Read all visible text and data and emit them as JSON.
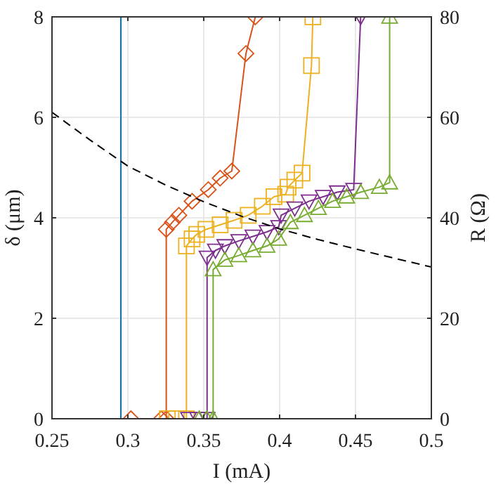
{
  "chart_data": {
    "type": "line",
    "xlabel": "I (mA)",
    "ylabel": "δ (μm)",
    "y2label": "R (Ω)",
    "xlim": [
      0.25,
      0.5
    ],
    "xticks": [
      0.25,
      0.3,
      0.35,
      0.4,
      0.45,
      0.5
    ],
    "ylim": [
      0,
      8
    ],
    "yticks": [
      0,
      2,
      4,
      6,
      8
    ],
    "y2lim": [
      0,
      80
    ],
    "y2ticks": [
      0,
      20,
      40,
      60,
      80
    ],
    "grid": true,
    "series": [
      {
        "color": "#0072bd",
        "marker": "none",
        "x": [
          0.2954,
          0.2954
        ],
        "values": [
          0,
          8
        ]
      },
      {
        "color": "#d95319",
        "marker": "diamond",
        "x": [
          0.302,
          0.322,
          0.3253,
          0.3253,
          0.3293,
          0.3336,
          0.3423,
          0.353,
          0.3608,
          0.3685,
          0.3778,
          0.384
        ],
        "values": [
          0,
          0,
          0,
          3.77,
          3.91,
          4.05,
          4.33,
          4.56,
          4.79,
          4.93,
          7.27,
          8
        ]
      },
      {
        "color": "#edb120",
        "marker": "square",
        "x": [
          0.326,
          0.332,
          0.3386,
          0.3386,
          0.3423,
          0.3454,
          0.3515,
          0.3608,
          0.37,
          0.3793,
          0.3886,
          0.3963,
          0.404,
          0.4056,
          0.41,
          0.4148,
          0.421,
          0.4219
        ],
        "values": [
          0,
          0,
          0,
          3.44,
          3.58,
          3.67,
          3.77,
          3.86,
          3.95,
          4.05,
          4.23,
          4.42,
          4.47,
          4.61,
          4.75,
          4.89,
          7.03,
          8
        ]
      },
      {
        "color": "#7e2f8e",
        "marker": "triangle-down",
        "x": [
          0.34,
          0.346,
          0.3522,
          0.3522,
          0.3577,
          0.3639,
          0.3731,
          0.3824,
          0.3917,
          0.3994,
          0.401,
          0.41,
          0.4194,
          0.4287,
          0.438,
          0.4488,
          0.4534
        ],
        "values": [
          0,
          0,
          0,
          3.21,
          3.35,
          3.44,
          3.54,
          3.63,
          3.72,
          3.82,
          4.05,
          4.19,
          4.33,
          4.42,
          4.51,
          4.56,
          8
        ]
      },
      {
        "color": "#77ac30",
        "marker": "triangle",
        "x": [
          0.347,
          0.352,
          0.3562,
          0.3562,
          0.3639,
          0.3731,
          0.3824,
          0.3917,
          0.3994,
          0.4071,
          0.4164,
          0.4256,
          0.4349,
          0.4442,
          0.4534,
          0.4657,
          0.4725,
          0.4725
        ],
        "values": [
          0,
          0,
          0,
          2.97,
          3.16,
          3.25,
          3.35,
          3.44,
          3.58,
          3.91,
          4.05,
          4.19,
          4.33,
          4.42,
          4.51,
          4.61,
          4.7,
          8
        ]
      },
      {
        "color": "#000000",
        "marker": "none",
        "line_style": "dashed",
        "axis": "y2",
        "x": [
          0.25,
          0.275,
          0.3,
          0.325,
          0.35,
          0.375,
          0.4,
          0.425,
          0.45,
          0.475,
          0.5
        ],
        "values": [
          61,
          55.5,
          50.3,
          46.5,
          43.2,
          40.3,
          37.8,
          35.7,
          33.8,
          32,
          30.2
        ]
      }
    ]
  }
}
